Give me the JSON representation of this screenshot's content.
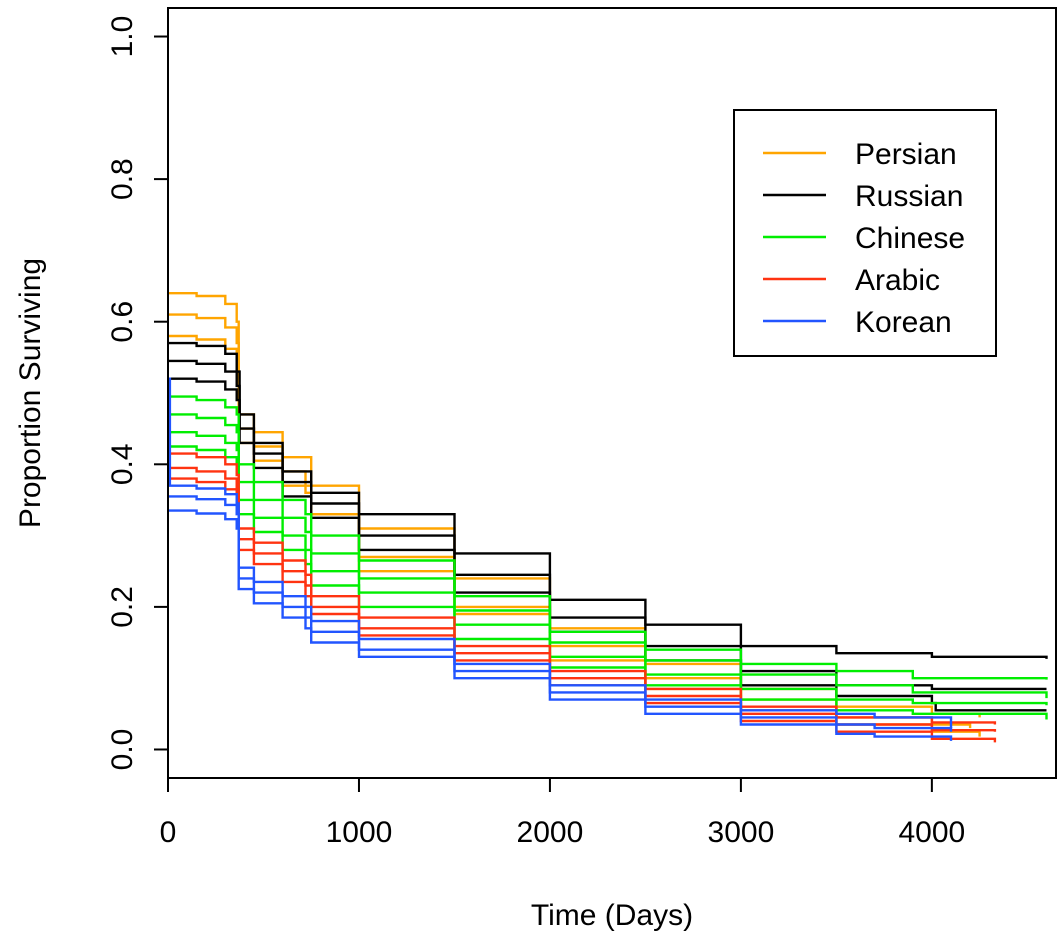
{
  "chart_data": {
    "type": "line",
    "title": "",
    "xlabel": "Time (Days)",
    "ylabel": "Proportion Surviving",
    "xlim": [
      0,
      4650
    ],
    "ylim": [
      -0.04,
      1.04
    ],
    "x_ticks": [
      "0",
      "1000",
      "2000",
      "3000",
      "4000"
    ],
    "x_tick_values": [
      0,
      1000,
      2000,
      3000,
      4000
    ],
    "y_ticks": [
      "0.0",
      "0.2",
      "0.4",
      "0.6",
      "0.8",
      "1.0"
    ],
    "y_tick_values": [
      0.0,
      0.2,
      0.4,
      0.6,
      0.8,
      1.0
    ],
    "grid": false,
    "legend_position": "top-right",
    "legend": [
      {
        "label": "Persian",
        "color": "#FFA500"
      },
      {
        "label": "Russian",
        "color": "#000000"
      },
      {
        "label": "Chinese",
        "color": "#00EE00"
      },
      {
        "label": "Arabic",
        "color": "#FF3311"
      },
      {
        "label": "Korean",
        "color": "#2255FF"
      }
    ],
    "series": [
      {
        "group": "Persian",
        "color": "#FFA500",
        "points": [
          [
            0,
            0.64
          ],
          [
            150,
            0.636
          ],
          [
            300,
            0.625
          ],
          [
            360,
            0.6
          ],
          [
            370,
            0.47
          ],
          [
            450,
            0.445
          ],
          [
            600,
            0.41
          ],
          [
            750,
            0.37
          ],
          [
            1000,
            0.31
          ],
          [
            1500,
            0.24
          ],
          [
            2000,
            0.17
          ],
          [
            2500,
            0.12
          ],
          [
            3000,
            0.085
          ],
          [
            3500,
            0.06
          ],
          [
            4000,
            0.05
          ],
          [
            4250,
            0.045
          ]
        ]
      },
      {
        "group": "Persian",
        "color": "#FFA500",
        "points": [
          [
            0,
            0.61
          ],
          [
            150,
            0.605
          ],
          [
            300,
            0.592
          ],
          [
            360,
            0.57
          ],
          [
            370,
            0.45
          ],
          [
            450,
            0.425
          ],
          [
            600,
            0.39
          ],
          [
            720,
            0.36
          ],
          [
            750,
            0.33
          ],
          [
            1000,
            0.27
          ],
          [
            1500,
            0.2
          ],
          [
            2000,
            0.145
          ],
          [
            2500,
            0.1
          ],
          [
            3000,
            0.07
          ],
          [
            3500,
            0.045
          ],
          [
            4000,
            0.035
          ],
          [
            4200,
            0.03
          ]
        ]
      },
      {
        "group": "Persian",
        "color": "#FFA500",
        "points": [
          [
            0,
            0.58
          ],
          [
            150,
            0.575
          ],
          [
            300,
            0.562
          ],
          [
            360,
            0.54
          ],
          [
            370,
            0.43
          ],
          [
            450,
            0.405
          ],
          [
            600,
            0.37
          ],
          [
            750,
            0.33
          ],
          [
            1000,
            0.25
          ],
          [
            1500,
            0.19
          ],
          [
            2000,
            0.125
          ],
          [
            2500,
            0.085
          ],
          [
            3000,
            0.055
          ],
          [
            3500,
            0.035
          ],
          [
            4000,
            0.025
          ],
          [
            4250,
            0.018
          ]
        ]
      },
      {
        "group": "Russian",
        "color": "#000000",
        "points": [
          [
            0,
            0.57
          ],
          [
            150,
            0.566
          ],
          [
            300,
            0.555
          ],
          [
            360,
            0.53
          ],
          [
            375,
            0.47
          ],
          [
            450,
            0.43
          ],
          [
            600,
            0.39
          ],
          [
            750,
            0.36
          ],
          [
            1000,
            0.33
          ],
          [
            1500,
            0.275
          ],
          [
            2000,
            0.21
          ],
          [
            2500,
            0.175
          ],
          [
            3000,
            0.145
          ],
          [
            3500,
            0.135
          ],
          [
            4000,
            0.13
          ],
          [
            4600,
            0.127
          ]
        ]
      },
      {
        "group": "Russian",
        "color": "#000000",
        "points": [
          [
            0,
            0.545
          ],
          [
            150,
            0.541
          ],
          [
            300,
            0.53
          ],
          [
            360,
            0.51
          ],
          [
            375,
            0.45
          ],
          [
            450,
            0.415
          ],
          [
            600,
            0.375
          ],
          [
            750,
            0.345
          ],
          [
            1000,
            0.3
          ],
          [
            1500,
            0.245
          ],
          [
            2000,
            0.185
          ],
          [
            2500,
            0.145
          ],
          [
            3000,
            0.11
          ],
          [
            3500,
            0.09
          ],
          [
            4000,
            0.085
          ],
          [
            4600,
            0.085
          ]
        ]
      },
      {
        "group": "Russian",
        "color": "#000000",
        "points": [
          [
            0,
            0.52
          ],
          [
            150,
            0.516
          ],
          [
            300,
            0.505
          ],
          [
            360,
            0.49
          ],
          [
            375,
            0.43
          ],
          [
            450,
            0.395
          ],
          [
            600,
            0.355
          ],
          [
            750,
            0.325
          ],
          [
            1000,
            0.28
          ],
          [
            1500,
            0.22
          ],
          [
            2000,
            0.165
          ],
          [
            2500,
            0.125
          ],
          [
            3000,
            0.09
          ],
          [
            3500,
            0.075
          ],
          [
            4000,
            0.065
          ],
          [
            4020,
            0.055
          ],
          [
            4600,
            0.055
          ]
        ]
      },
      {
        "group": "Chinese",
        "color": "#00EE00",
        "points": [
          [
            0,
            0.495
          ],
          [
            150,
            0.49
          ],
          [
            300,
            0.48
          ],
          [
            360,
            0.47
          ],
          [
            370,
            0.4
          ],
          [
            450,
            0.375
          ],
          [
            600,
            0.35
          ],
          [
            720,
            0.33
          ],
          [
            750,
            0.3
          ],
          [
            1000,
            0.265
          ],
          [
            1500,
            0.215
          ],
          [
            2000,
            0.165
          ],
          [
            2500,
            0.14
          ],
          [
            3000,
            0.12
          ],
          [
            3500,
            0.11
          ],
          [
            3900,
            0.1
          ],
          [
            4600,
            0.098
          ]
        ]
      },
      {
        "group": "Chinese",
        "color": "#00EE00",
        "points": [
          [
            0,
            0.47
          ],
          [
            150,
            0.465
          ],
          [
            300,
            0.455
          ],
          [
            360,
            0.445
          ],
          [
            370,
            0.375
          ],
          [
            450,
            0.35
          ],
          [
            600,
            0.325
          ],
          [
            720,
            0.305
          ],
          [
            750,
            0.275
          ],
          [
            1000,
            0.24
          ],
          [
            1500,
            0.195
          ],
          [
            2000,
            0.15
          ],
          [
            2500,
            0.125
          ],
          [
            3000,
            0.105
          ],
          [
            3500,
            0.09
          ],
          [
            3900,
            0.08
          ],
          [
            4600,
            0.072
          ]
        ]
      },
      {
        "group": "Chinese",
        "color": "#00EE00",
        "points": [
          [
            0,
            0.445
          ],
          [
            150,
            0.44
          ],
          [
            300,
            0.43
          ],
          [
            360,
            0.42
          ],
          [
            370,
            0.35
          ],
          [
            450,
            0.325
          ],
          [
            600,
            0.3
          ],
          [
            720,
            0.28
          ],
          [
            750,
            0.25
          ],
          [
            1000,
            0.22
          ],
          [
            1500,
            0.175
          ],
          [
            2000,
            0.13
          ],
          [
            2500,
            0.105
          ],
          [
            3000,
            0.085
          ],
          [
            3500,
            0.07
          ],
          [
            3900,
            0.065
          ],
          [
            4600,
            0.062
          ]
        ]
      },
      {
        "group": "Chinese",
        "color": "#00EE00",
        "points": [
          [
            0,
            0.425
          ],
          [
            150,
            0.42
          ],
          [
            300,
            0.41
          ],
          [
            360,
            0.4
          ],
          [
            370,
            0.33
          ],
          [
            450,
            0.305
          ],
          [
            600,
            0.28
          ],
          [
            720,
            0.26
          ],
          [
            750,
            0.23
          ],
          [
            1000,
            0.2
          ],
          [
            1500,
            0.155
          ],
          [
            2000,
            0.115
          ],
          [
            2500,
            0.09
          ],
          [
            3000,
            0.07
          ],
          [
            3500,
            0.055
          ],
          [
            3900,
            0.05
          ],
          [
            4600,
            0.042
          ]
        ]
      },
      {
        "group": "Arabic",
        "color": "#FF3311",
        "points": [
          [
            0,
            0.415
          ],
          [
            150,
            0.41
          ],
          [
            300,
            0.4
          ],
          [
            360,
            0.385
          ],
          [
            370,
            0.31
          ],
          [
            450,
            0.29
          ],
          [
            600,
            0.265
          ],
          [
            720,
            0.245
          ],
          [
            750,
            0.215
          ],
          [
            1000,
            0.185
          ],
          [
            1500,
            0.145
          ],
          [
            2000,
            0.11
          ],
          [
            2500,
            0.085
          ],
          [
            3000,
            0.06
          ],
          [
            3500,
            0.045
          ],
          [
            4000,
            0.038
          ],
          [
            4330,
            0.035
          ]
        ]
      },
      {
        "group": "Arabic",
        "color": "#FF3311",
        "points": [
          [
            0,
            0.395
          ],
          [
            150,
            0.39
          ],
          [
            300,
            0.38
          ],
          [
            360,
            0.365
          ],
          [
            370,
            0.295
          ],
          [
            450,
            0.275
          ],
          [
            600,
            0.25
          ],
          [
            720,
            0.23
          ],
          [
            750,
            0.2
          ],
          [
            1000,
            0.17
          ],
          [
            1500,
            0.135
          ],
          [
            2000,
            0.1
          ],
          [
            2500,
            0.075
          ],
          [
            3000,
            0.05
          ],
          [
            3500,
            0.035
          ],
          [
            4000,
            0.027
          ],
          [
            4330,
            0.025
          ]
        ]
      },
      {
        "group": "Arabic",
        "color": "#FF3311",
        "points": [
          [
            0,
            0.38
          ],
          [
            150,
            0.375
          ],
          [
            300,
            0.365
          ],
          [
            360,
            0.35
          ],
          [
            370,
            0.28
          ],
          [
            450,
            0.26
          ],
          [
            600,
            0.235
          ],
          [
            720,
            0.215
          ],
          [
            750,
            0.19
          ],
          [
            1000,
            0.16
          ],
          [
            1500,
            0.125
          ],
          [
            2000,
            0.09
          ],
          [
            2500,
            0.065
          ],
          [
            3000,
            0.04
          ],
          [
            3500,
            0.025
          ],
          [
            4000,
            0.015
          ],
          [
            4330,
            0.01
          ]
        ]
      },
      {
        "group": "Korean",
        "color": "#2255FF",
        "points": [
          [
            0,
            0.52
          ],
          [
            10,
            0.37
          ],
          [
            150,
            0.366
          ],
          [
            300,
            0.358
          ],
          [
            360,
            0.345
          ],
          [
            370,
            0.255
          ],
          [
            450,
            0.235
          ],
          [
            600,
            0.215
          ],
          [
            720,
            0.2
          ],
          [
            750,
            0.18
          ],
          [
            1000,
            0.155
          ],
          [
            1500,
            0.12
          ],
          [
            2000,
            0.09
          ],
          [
            2500,
            0.07
          ],
          [
            3000,
            0.055
          ],
          [
            3500,
            0.05
          ],
          [
            3700,
            0.045
          ],
          [
            4100,
            0.03
          ]
        ]
      },
      {
        "group": "Korean",
        "color": "#2255FF",
        "points": [
          [
            0,
            0.355
          ],
          [
            150,
            0.351
          ],
          [
            300,
            0.343
          ],
          [
            360,
            0.33
          ],
          [
            370,
            0.24
          ],
          [
            450,
            0.22
          ],
          [
            600,
            0.2
          ],
          [
            720,
            0.185
          ],
          [
            750,
            0.165
          ],
          [
            1000,
            0.14
          ],
          [
            1500,
            0.11
          ],
          [
            2000,
            0.08
          ],
          [
            2500,
            0.06
          ],
          [
            3000,
            0.045
          ],
          [
            3500,
            0.035
          ],
          [
            3700,
            0.03
          ],
          [
            4100,
            0.025
          ]
        ]
      },
      {
        "group": "Korean",
        "color": "#2255FF",
        "points": [
          [
            0,
            0.335
          ],
          [
            150,
            0.331
          ],
          [
            300,
            0.323
          ],
          [
            360,
            0.31
          ],
          [
            370,
            0.225
          ],
          [
            450,
            0.205
          ],
          [
            600,
            0.185
          ],
          [
            720,
            0.17
          ],
          [
            750,
            0.15
          ],
          [
            1000,
            0.13
          ],
          [
            1500,
            0.1
          ],
          [
            2000,
            0.07
          ],
          [
            2500,
            0.05
          ],
          [
            3000,
            0.035
          ],
          [
            3500,
            0.022
          ],
          [
            3700,
            0.018
          ],
          [
            4100,
            0.012
          ]
        ]
      }
    ]
  }
}
